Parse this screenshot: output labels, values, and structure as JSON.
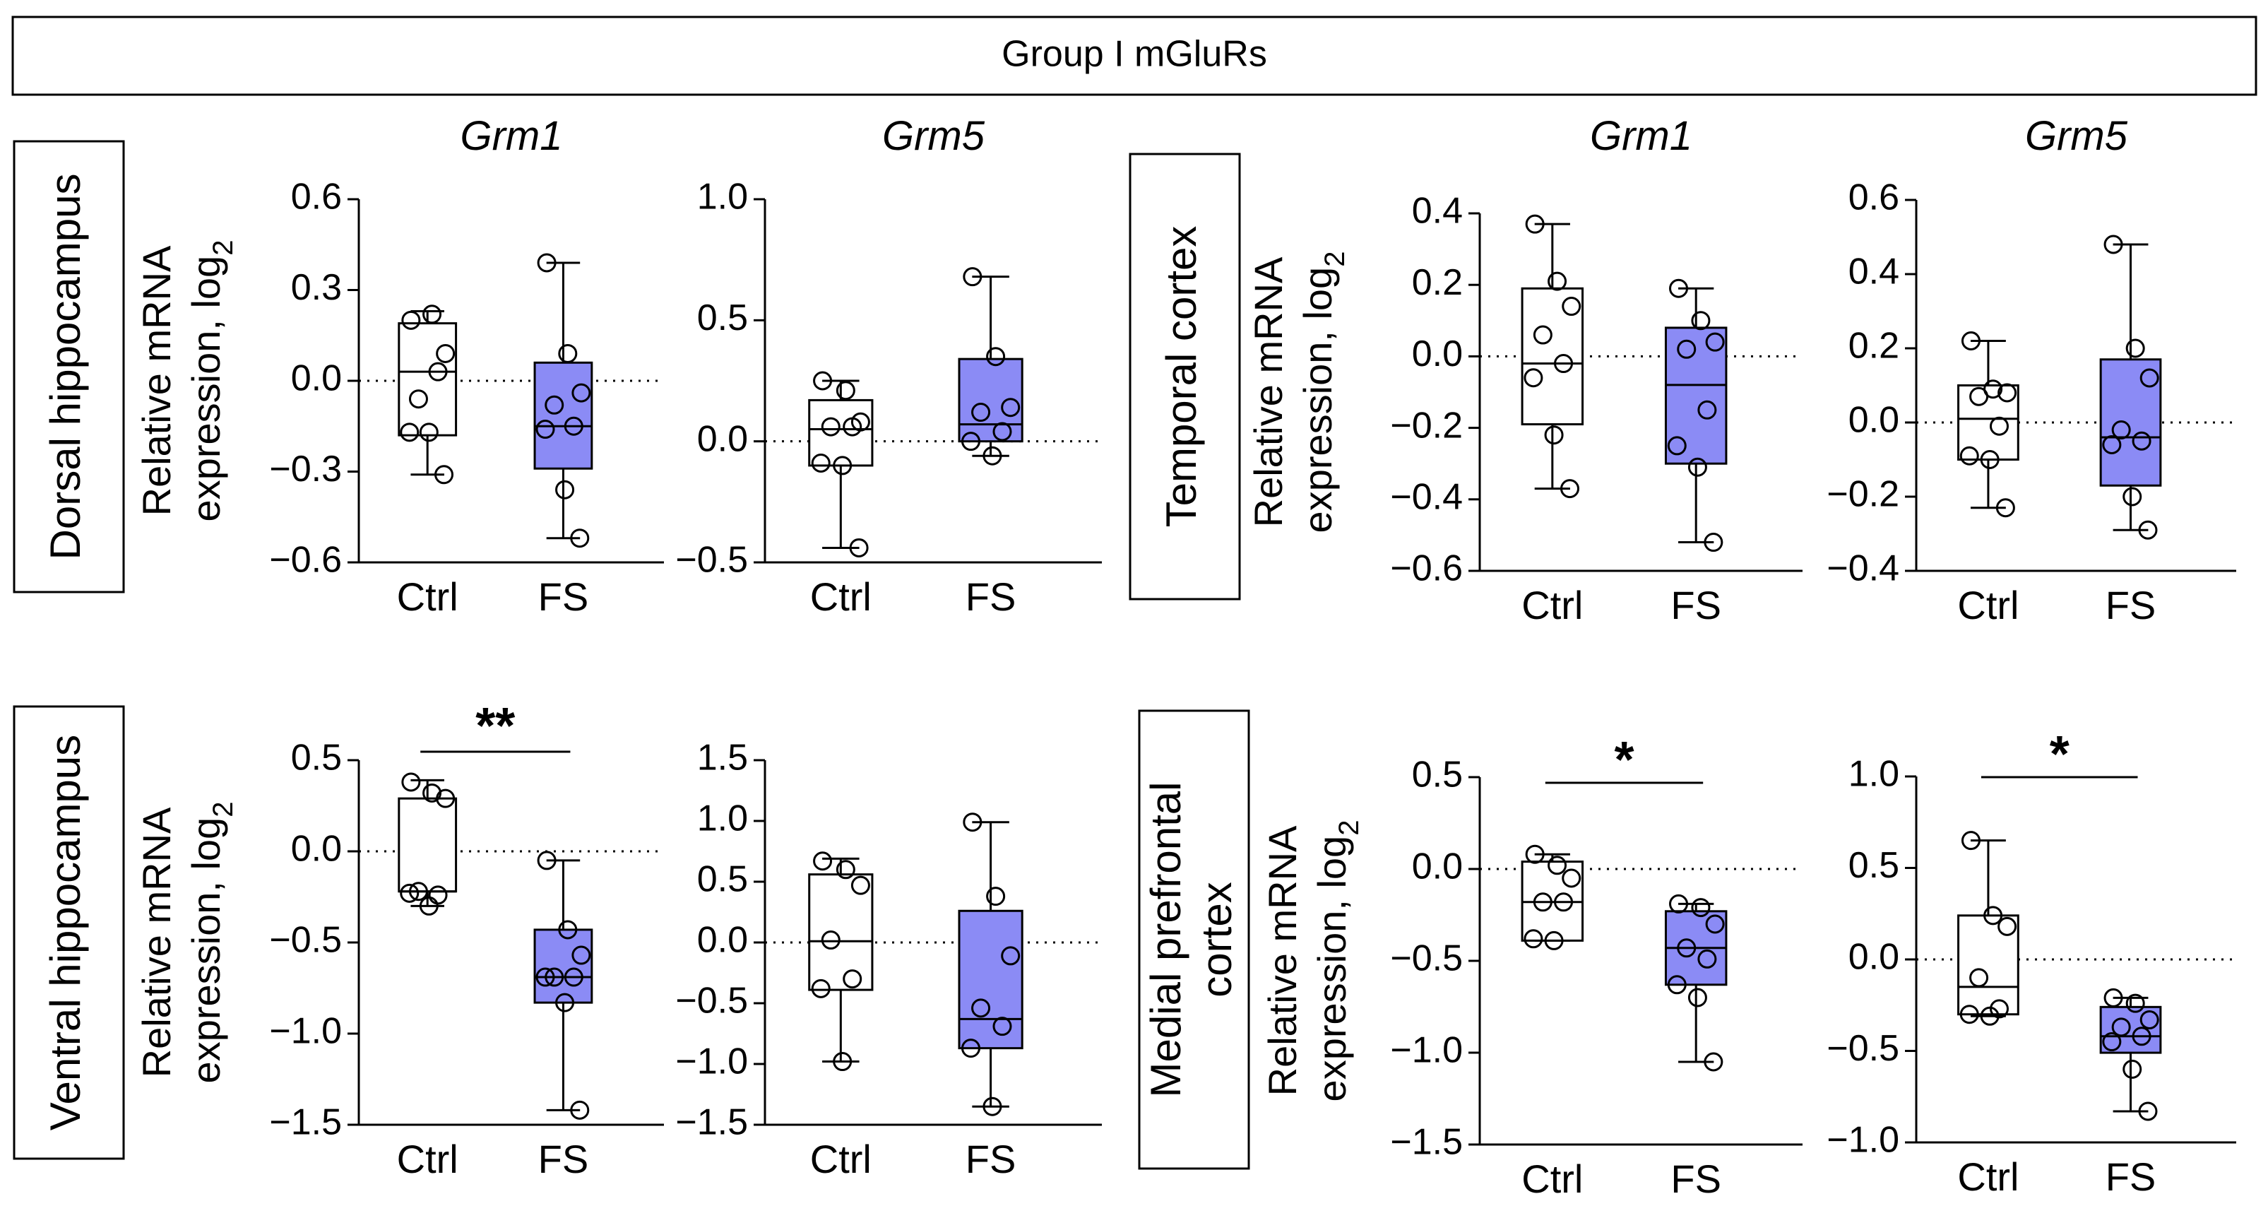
{
  "figure_title": "Group I mGluRs",
  "y_axis_label_line1": "Relative mRNA",
  "y_axis_label_line2": "expression, log",
  "y_axis_label_subscript": "2",
  "colors": {
    "ctrl_box": "#ffffff",
    "fs_box": "#8b8bf5",
    "stroke": "#000000"
  },
  "region_labels": {
    "dorsal_hippocampus": [
      "Dorsal hippocampus"
    ],
    "ventral_hippocampus": [
      "Ventral hippocampus"
    ],
    "temporal_cortex": [
      "Temporal cortex"
    ],
    "medial_prefrontal_cortex": [
      "Medial prefrontal",
      "cortex"
    ]
  },
  "chart_data": [
    {
      "type": "box",
      "region": "Dorsal hippocampus",
      "gene": "Grm1",
      "categories": [
        "Ctrl",
        "FS"
      ],
      "ylim": [
        -0.6,
        0.6
      ],
      "yticks": [
        "0.6",
        "0.3",
        "0.0",
        "−0.3",
        "−0.6"
      ],
      "ytick_values": [
        0.6,
        0.3,
        0.0,
        -0.3,
        -0.6
      ],
      "series": [
        {
          "name": "Ctrl",
          "min": -0.31,
          "q1": -0.18,
          "median": 0.03,
          "q3": 0.19,
          "max": 0.23,
          "points": [
            0.2,
            0.22,
            0.09,
            -0.06,
            0.03,
            -0.17,
            -0.17,
            -0.31
          ]
        },
        {
          "name": "FS",
          "min": -0.52,
          "q1": -0.29,
          "median": -0.15,
          "q3": 0.06,
          "max": 0.39,
          "points": [
            0.39,
            0.09,
            -0.04,
            -0.08,
            -0.15,
            -0.16,
            -0.36,
            -0.52
          ]
        }
      ],
      "significance": ""
    },
    {
      "type": "box",
      "region": "Dorsal hippocampus",
      "gene": "Grm5",
      "categories": [
        "Ctrl",
        "FS"
      ],
      "ylim": [
        -0.5,
        1.0
      ],
      "yticks": [
        "1.0",
        "0.5",
        "0.0",
        "−0.5"
      ],
      "ytick_values": [
        1.0,
        0.5,
        0.0,
        -0.5
      ],
      "series": [
        {
          "name": "Ctrl",
          "min": -0.44,
          "q1": -0.1,
          "median": 0.05,
          "q3": 0.17,
          "max": 0.25,
          "points": [
            0.25,
            0.21,
            0.08,
            0.06,
            0.06,
            -0.09,
            -0.1,
            -0.44
          ]
        },
        {
          "name": "FS",
          "min": -0.06,
          "q1": 0.0,
          "median": 0.07,
          "q3": 0.34,
          "max": 0.68,
          "points": [
            0.68,
            0.35,
            0.14,
            0.12,
            0.04,
            0.0,
            -0.06
          ]
        }
      ],
      "significance": ""
    },
    {
      "type": "box",
      "region": "Temporal cortex",
      "gene": "Grm1",
      "categories": [
        "Ctrl",
        "FS"
      ],
      "ylim": [
        -0.6,
        0.4
      ],
      "yticks": [
        "0.4",
        "0.2",
        "0.0",
        "−0.2",
        "−0.4",
        "−0.6"
      ],
      "ytick_values": [
        0.4,
        0.2,
        0.0,
        -0.2,
        -0.4,
        -0.6
      ],
      "series": [
        {
          "name": "Ctrl",
          "min": -0.37,
          "q1": -0.19,
          "median": -0.02,
          "q3": 0.19,
          "max": 0.37,
          "points": [
            0.37,
            0.21,
            0.14,
            0.06,
            -0.02,
            -0.06,
            -0.22,
            -0.37
          ]
        },
        {
          "name": "FS",
          "min": -0.52,
          "q1": -0.3,
          "median": -0.08,
          "q3": 0.08,
          "max": 0.19,
          "points": [
            0.19,
            0.1,
            0.04,
            0.02,
            -0.15,
            -0.25,
            -0.31,
            -0.52
          ]
        }
      ],
      "significance": ""
    },
    {
      "type": "box",
      "region": "Temporal cortex",
      "gene": "Grm5",
      "categories": [
        "Ctrl",
        "FS"
      ],
      "ylim": [
        -0.4,
        0.6
      ],
      "yticks": [
        "0.6",
        "0.4",
        "0.2",
        "0.0",
        "−0.2",
        "−0.4"
      ],
      "ytick_values": [
        0.6,
        0.4,
        0.2,
        0.0,
        -0.2,
        -0.4
      ],
      "series": [
        {
          "name": "Ctrl",
          "min": -0.23,
          "q1": -0.1,
          "median": 0.01,
          "q3": 0.1,
          "max": 0.22,
          "points": [
            0.22,
            0.09,
            0.08,
            0.07,
            -0.01,
            -0.09,
            -0.1,
            -0.23
          ]
        },
        {
          "name": "FS",
          "min": -0.29,
          "q1": -0.17,
          "median": -0.04,
          "q3": 0.17,
          "max": 0.48,
          "points": [
            0.48,
            0.2,
            0.12,
            -0.02,
            -0.05,
            -0.06,
            -0.2,
            -0.29
          ]
        }
      ],
      "significance": ""
    },
    {
      "type": "box",
      "region": "Ventral hippocampus",
      "gene": "Grm1",
      "categories": [
        "Ctrl",
        "FS"
      ],
      "ylim": [
        -1.5,
        0.5
      ],
      "yticks": [
        "0.5",
        "0.0",
        "−0.5",
        "−1.0",
        "−1.5"
      ],
      "ytick_values": [
        0.5,
        0.0,
        -0.5,
        -1.0,
        -1.5
      ],
      "series": [
        {
          "name": "Ctrl",
          "min": -0.3,
          "q1": -0.22,
          "median": -0.22,
          "q3": 0.29,
          "max": 0.39,
          "points": [
            0.38,
            0.32,
            0.29,
            -0.22,
            -0.24,
            -0.23,
            -0.3
          ]
        },
        {
          "name": "FS",
          "min": -1.42,
          "q1": -0.83,
          "median": -0.69,
          "q3": -0.43,
          "max": -0.05,
          "points": [
            -0.05,
            -0.43,
            -0.57,
            -0.69,
            -0.69,
            -0.69,
            -0.83,
            -1.42
          ]
        }
      ],
      "significance": "**"
    },
    {
      "type": "box",
      "region": "Ventral hippocampus",
      "gene": "Grm5",
      "categories": [
        "Ctrl",
        "FS"
      ],
      "ylim": [
        -1.5,
        1.5
      ],
      "yticks": [
        "1.5",
        "1.0",
        "0.5",
        "0.0",
        "−0.5",
        "−1.0",
        "−1.5"
      ],
      "ytick_values": [
        1.5,
        1.0,
        0.5,
        0.0,
        -0.5,
        -1.0,
        -1.5
      ],
      "series": [
        {
          "name": "Ctrl",
          "min": -0.98,
          "q1": -0.39,
          "median": 0.01,
          "q3": 0.56,
          "max": 0.69,
          "points": [
            0.67,
            0.6,
            0.47,
            0.02,
            -0.3,
            -0.38,
            -0.98
          ]
        },
        {
          "name": "FS",
          "min": -1.35,
          "q1": -0.87,
          "median": -0.63,
          "q3": 0.26,
          "max": 0.99,
          "points": [
            0.99,
            0.38,
            -0.11,
            -0.54,
            -0.69,
            -0.87,
            -1.35
          ]
        }
      ],
      "significance": ""
    },
    {
      "type": "box",
      "region": "Medial prefrontal cortex",
      "gene": "Grm1",
      "categories": [
        "Ctrl",
        "FS"
      ],
      "ylim": [
        -1.5,
        0.5
      ],
      "yticks": [
        "0.5",
        "0.0",
        "−0.5",
        "−1.0",
        "−1.5"
      ],
      "ytick_values": [
        0.5,
        0.0,
        -0.5,
        -1.0,
        -1.5
      ],
      "series": [
        {
          "name": "Ctrl",
          "min": -0.39,
          "q1": -0.39,
          "median": -0.18,
          "q3": 0.04,
          "max": 0.08,
          "points": [
            0.08,
            0.02,
            -0.05,
            -0.18,
            -0.18,
            -0.38,
            -0.39
          ]
        },
        {
          "name": "FS",
          "min": -1.05,
          "q1": -0.63,
          "median": -0.43,
          "q3": -0.23,
          "max": -0.19,
          "points": [
            -0.19,
            -0.21,
            -0.3,
            -0.43,
            -0.49,
            -0.63,
            -0.7,
            -1.05
          ]
        }
      ],
      "significance": "*"
    },
    {
      "type": "box",
      "region": "Medial prefrontal cortex",
      "gene": "Grm5",
      "categories": [
        "Ctrl",
        "FS"
      ],
      "ylim": [
        -1.0,
        1.0
      ],
      "yticks": [
        "1.0",
        "0.5",
        "0.0",
        "−0.5",
        "−1.0"
      ],
      "ytick_values": [
        1.0,
        0.5,
        0.0,
        -0.5,
        -1.0
      ],
      "series": [
        {
          "name": "Ctrl",
          "min": -0.31,
          "q1": -0.3,
          "median": -0.15,
          "q3": 0.24,
          "max": 0.65,
          "points": [
            0.65,
            0.24,
            0.18,
            -0.1,
            -0.27,
            -0.3,
            -0.31
          ]
        },
        {
          "name": "FS",
          "min": -0.83,
          "q1": -0.51,
          "median": -0.42,
          "q3": -0.26,
          "max": -0.21,
          "points": [
            -0.21,
            -0.24,
            -0.33,
            -0.37,
            -0.42,
            -0.45,
            -0.6,
            -0.83
          ]
        }
      ],
      "significance": "*"
    }
  ]
}
